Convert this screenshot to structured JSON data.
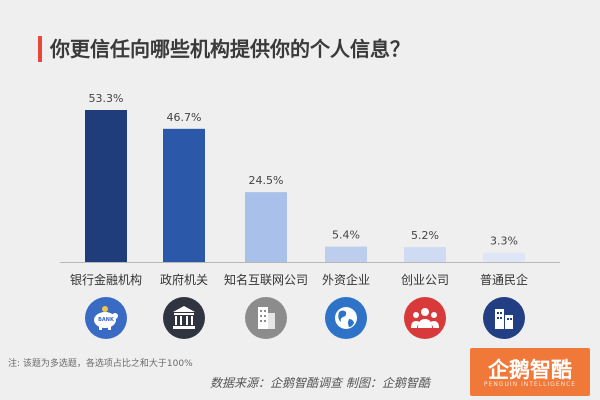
{
  "chart_data": {
    "type": "bar",
    "title": "你更信任向哪些机构提供你的个人信息？",
    "categories": [
      "银行金融机构",
      "政府机关",
      "知名互联网公司",
      "外资企业",
      "创业公司",
      "普通民企"
    ],
    "values": [
      53.3,
      46.7,
      24.5,
      5.4,
      5.2,
      3.3
    ],
    "value_labels": [
      "53.3%",
      "46.7%",
      "24.5%",
      "5.4%",
      "5.2%",
      "3.3%"
    ],
    "bar_colors": [
      "#1f3d7a",
      "#2b58a8",
      "#a9c0ea",
      "#bccdee",
      "#cfdbf3",
      "#dfe7f7"
    ],
    "ylim": [
      0,
      60
    ],
    "grid": false,
    "legend": "none"
  },
  "icons": [
    {
      "name": "bank-piggy-icon",
      "color": "#3a6bc4",
      "label": "BANK"
    },
    {
      "name": "government-building-icon",
      "color": "#2f3440"
    },
    {
      "name": "office-building-icon",
      "color": "#8c8c8c"
    },
    {
      "name": "globe-icon",
      "color": "#2e73c7"
    },
    {
      "name": "team-icon",
      "color": "#d8393a"
    },
    {
      "name": "city-buildings-icon",
      "color": "#223f84"
    }
  ],
  "footnote": "注: 该题为多选题，各选项占比之和大于100%",
  "source": "数据来源：企鹅智酷调查  制图：企鹅智酷",
  "logo": {
    "text": "企鹅智酷",
    "subtext": "PENGUIN INTELLIGENCE",
    "color": "#f0793a"
  }
}
